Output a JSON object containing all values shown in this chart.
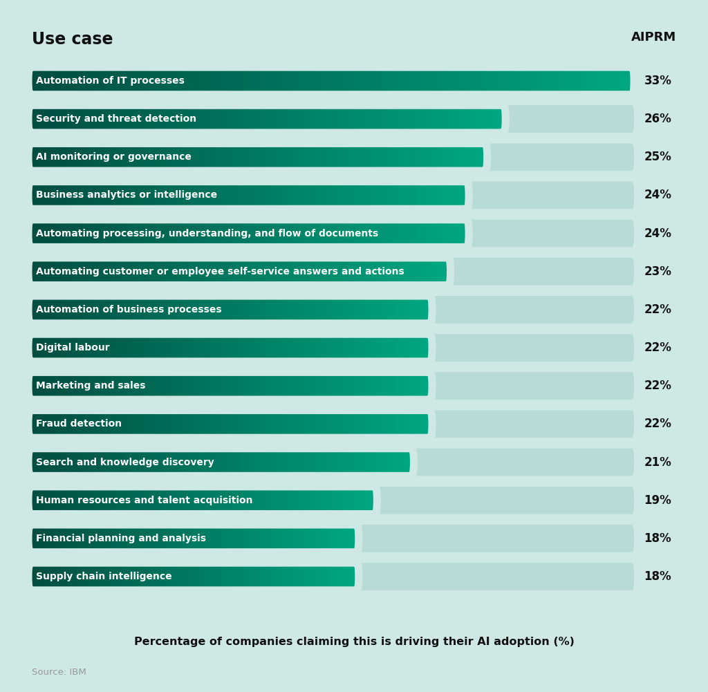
{
  "categories": [
    "Automation of IT processes",
    "Security and threat detection",
    "AI monitoring or governance",
    "Business analytics or intelligence",
    "Automating processing, understanding, and flow of documents",
    "Automating customer or employee self-service answers and actions",
    "Automation of business processes",
    "Digital labour",
    "Marketing and sales",
    "Fraud detection",
    "Search and knowledge discovery",
    "Human resources and talent acquisition",
    "Financial planning and analysis",
    "Supply chain intelligence"
  ],
  "values": [
    33,
    26,
    25,
    24,
    24,
    23,
    22,
    22,
    22,
    22,
    21,
    19,
    18,
    18
  ],
  "background_color": "#cde8e5",
  "bar_bg_color": "#b8dbd8",
  "title": "Use case",
  "xlabel": "Percentage of companies claiming this is driving their AI adoption (%)",
  "source": "Source: IBM",
  "max_value": 33,
  "bar_height": 0.72,
  "text_color": "#111111",
  "value_color": "#111111",
  "source_color": "#999999",
  "color_dark": [
    0,
    77,
    64
  ],
  "color_mid": [
    0,
    128,
    100
  ],
  "color_light": [
    0,
    168,
    130
  ],
  "title_fontsize": 17,
  "label_fontsize": 10,
  "value_fontsize": 12
}
